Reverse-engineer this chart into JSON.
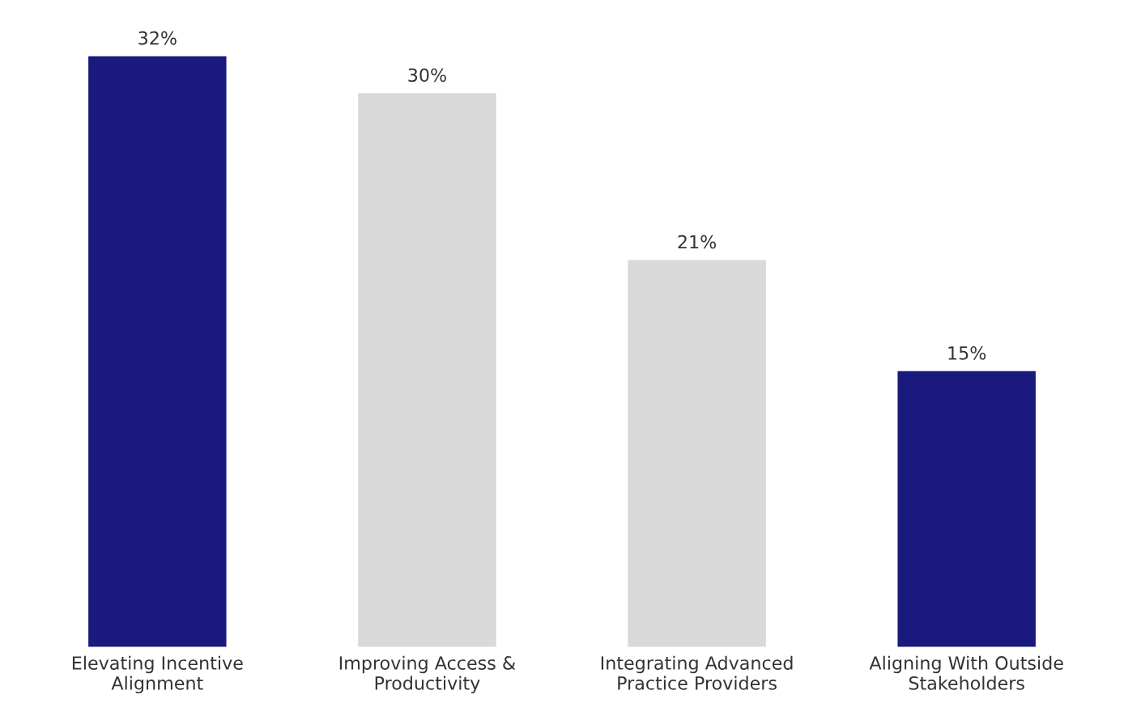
{
  "chart_data": {
    "type": "bar",
    "categories": [
      "Elevating Incentive\nAlignment",
      "Improving Access &\nProductivity",
      "Integrating Advanced\nPractice Providers",
      "Aligning With Outside\nStakeholders"
    ],
    "values": [
      32,
      30,
      21,
      15
    ],
    "colors": [
      "#1a1a7e",
      "#d9d9d9",
      "#d9d9d9",
      "#1a1a7e"
    ],
    "value_labels": [
      "32%",
      "30%",
      "21%",
      "15%"
    ],
    "grid": false,
    "legend": false
  }
}
